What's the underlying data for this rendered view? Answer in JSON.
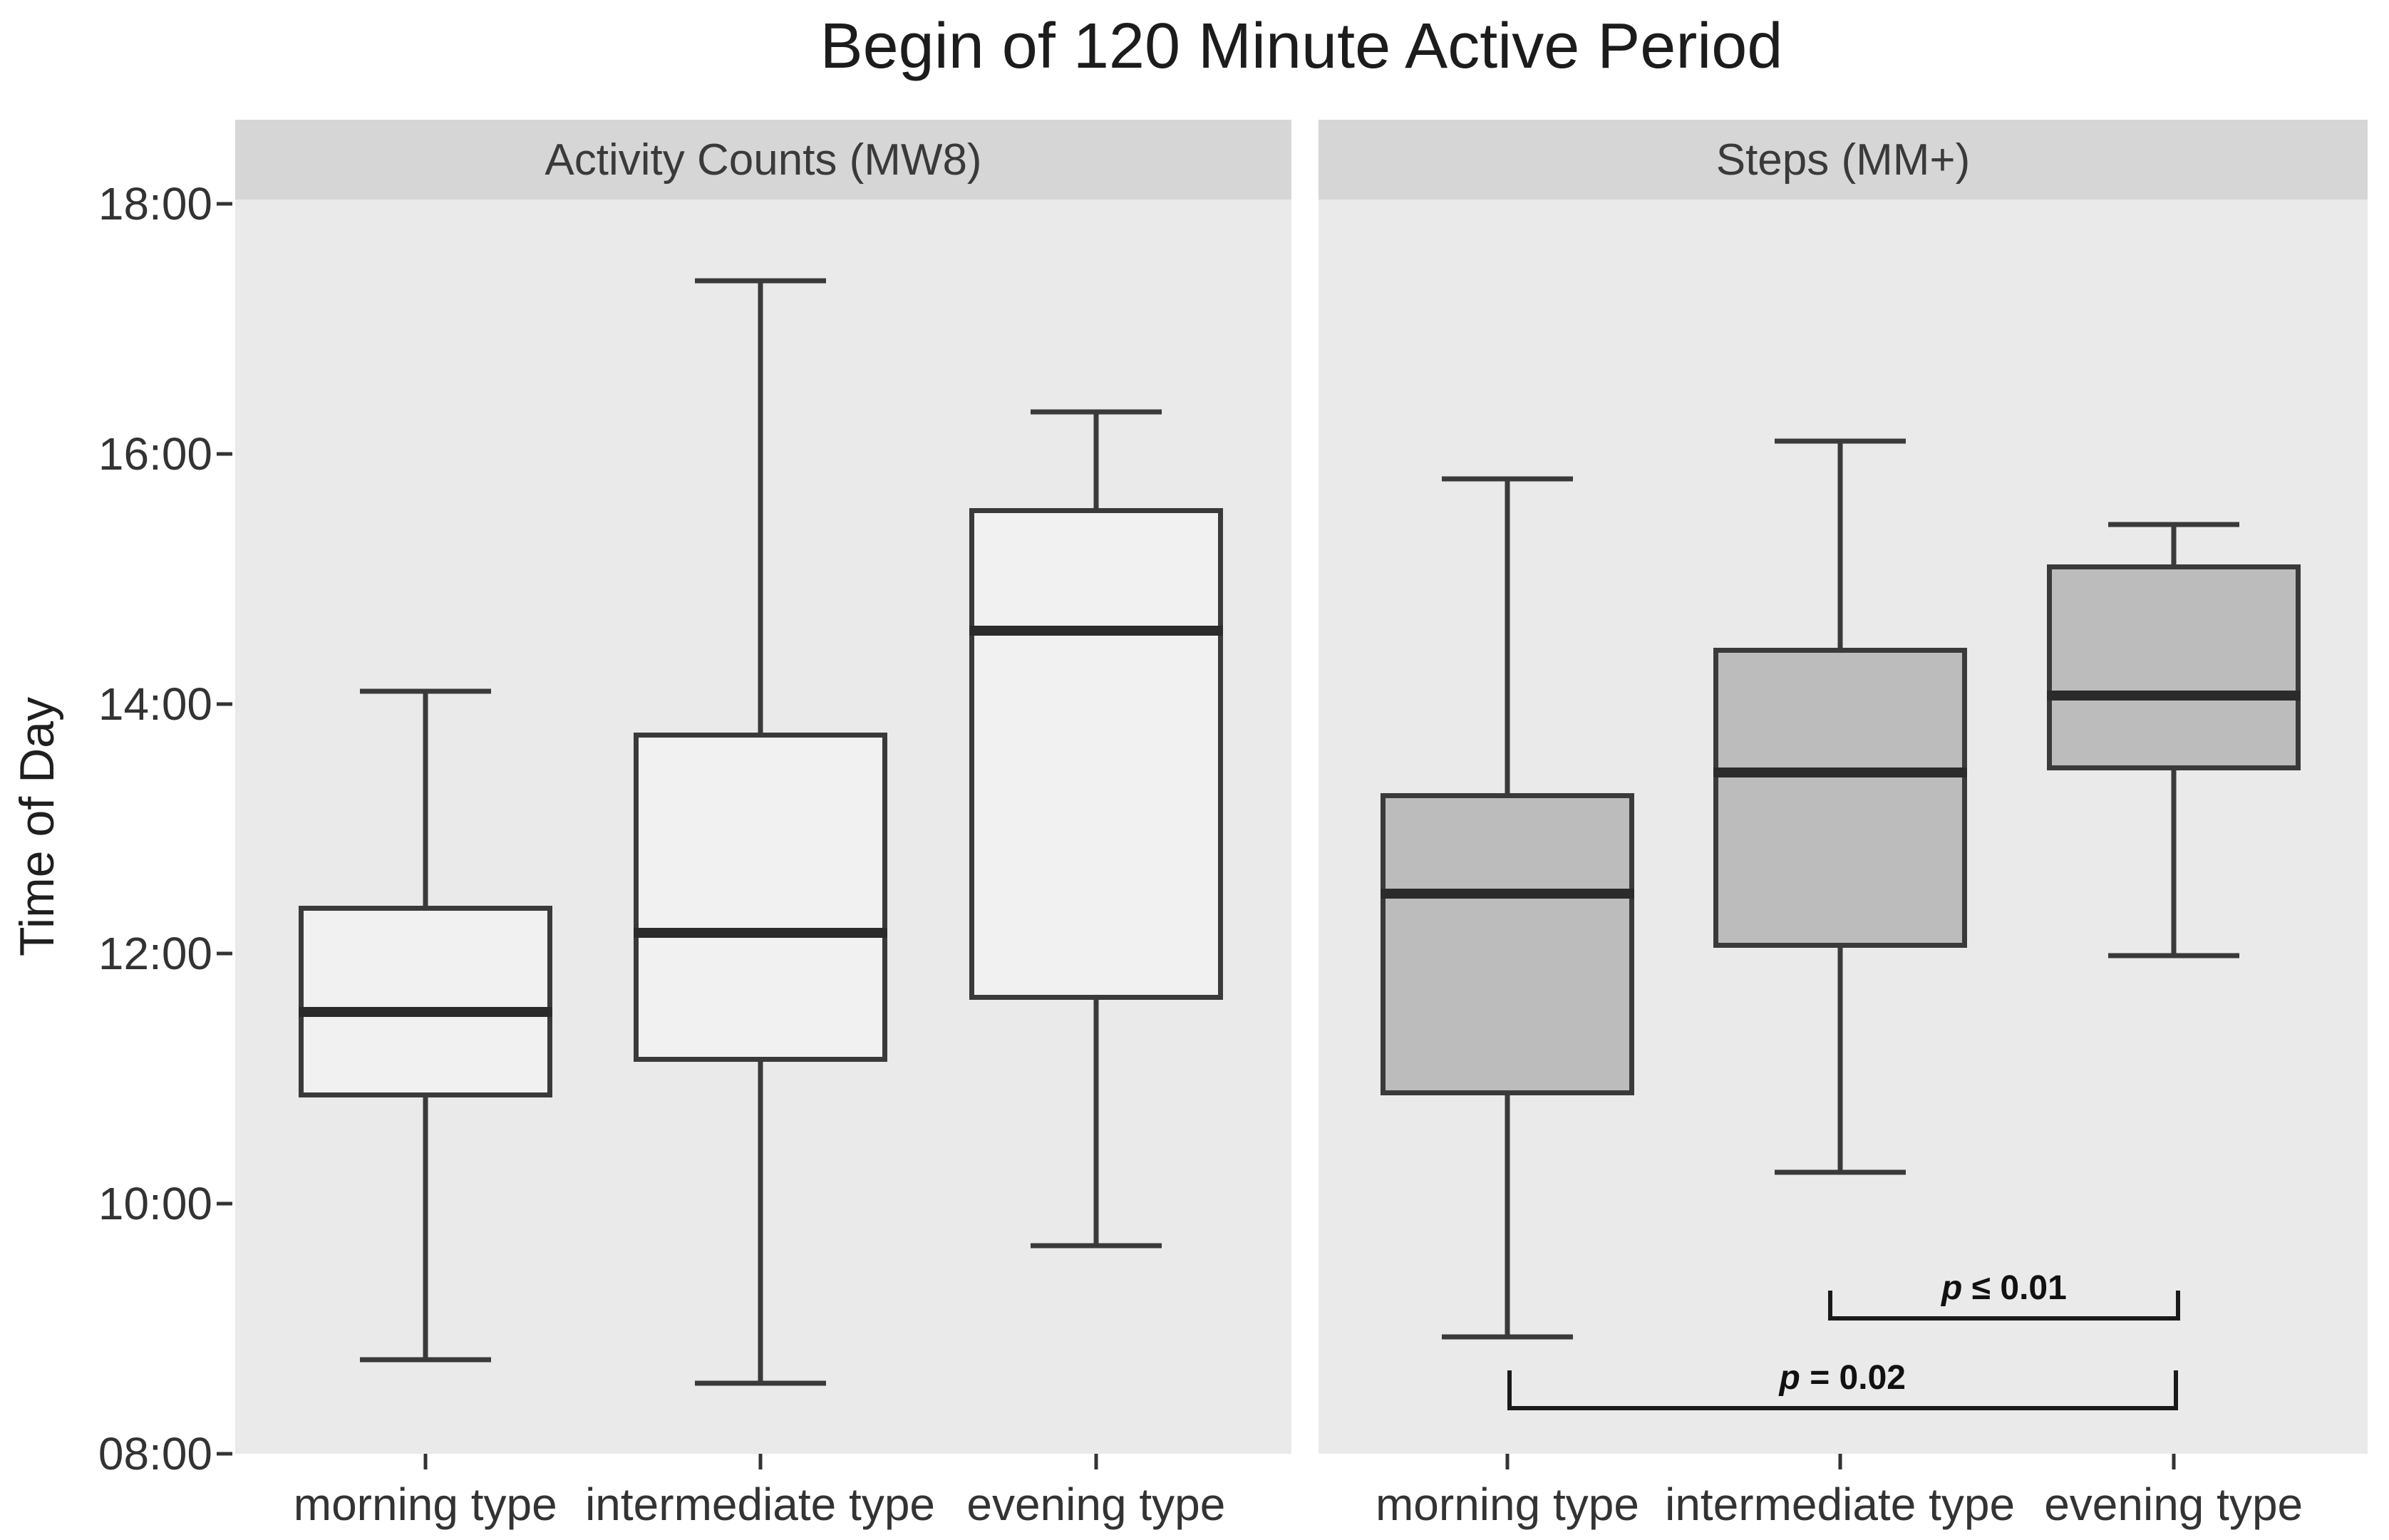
{
  "chart_data": {
    "type": "boxplot",
    "title": "Begin of 120 Minute Active Period",
    "ylabel": "Time of Day",
    "y_tick_labels": [
      "18:00",
      "16:00",
      "14:00",
      "12:00",
      "10:00",
      "08:00"
    ],
    "ylim": [
      "08:00",
      "18:02"
    ],
    "grid": "off",
    "categories": [
      "morning type",
      "intermediate type",
      "evening type"
    ],
    "facets": [
      {
        "label": "Activity Counts (MW8)",
        "box_fill": "#f1f1f1",
        "boxes": [
          {
            "category": "morning type",
            "whisker_low": "08:45",
            "q1": "10:51",
            "median": "11:32",
            "q3": "12:23",
            "whisker_high": "14:06"
          },
          {
            "category": "intermediate type",
            "whisker_low": "08:34",
            "q1": "11:08",
            "median": "12:10",
            "q3": "13:46",
            "whisker_high": "17:23"
          },
          {
            "category": "evening type",
            "whisker_low": "09:40",
            "q1": "11:38",
            "median": "14:35",
            "q3": "15:34",
            "whisker_high": "16:20"
          }
        ]
      },
      {
        "label": "Steps (MM+)",
        "box_fill": "#bcbcbc",
        "boxes": [
          {
            "category": "morning type",
            "whisker_low": "08:56",
            "q1": "10:52",
            "median": "12:29",
            "q3": "13:17",
            "whisker_high": "15:48"
          },
          {
            "category": "intermediate type",
            "whisker_low": "10:15",
            "q1": "12:03",
            "median": "13:27",
            "q3": "14:27",
            "whisker_high": "16:06"
          },
          {
            "category": "evening type",
            "whisker_low": "11:59",
            "q1": "13:28",
            "median": "14:04",
            "q3": "15:07",
            "whisker_high": "15:26"
          }
        ]
      }
    ],
    "annotations": [
      {
        "facet": 1,
        "p_symbol": "p",
        "label_rest": " ≤ 0.01",
        "x1_frac": 0.486,
        "x2_frac": 0.821,
        "y": "09:06",
        "tick_h": 36
      },
      {
        "facet": 1,
        "p_symbol": "p",
        "label_rest": " = 0.02",
        "x1_frac": 0.18,
        "x2_frac": 0.819,
        "y": "08:23",
        "tick_h": 50
      }
    ]
  },
  "colors": {
    "background": "#ffffff",
    "panel_bg": "#eaeaea",
    "strip_bg": "#d6d6d6",
    "strip_text": "#3a3a3a",
    "axis_text": "#333333",
    "title_text": "#1c1c1c",
    "line": "#3a3a3a",
    "median": "#2b2b2b",
    "bracket": "#1a1a1a"
  }
}
